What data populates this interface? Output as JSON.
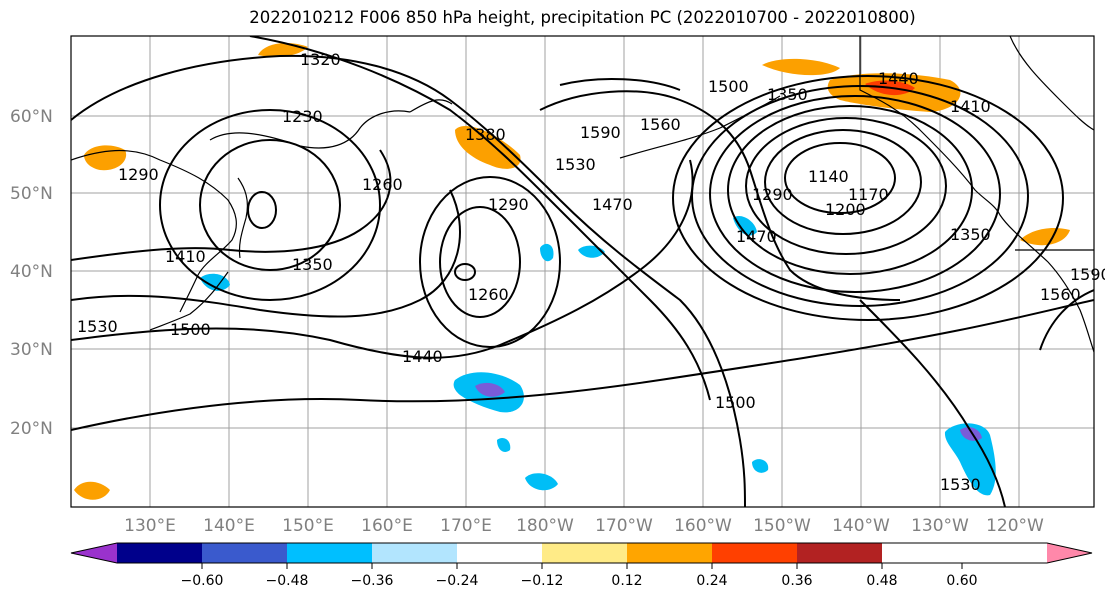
{
  "title": "2022010212 F006 850 hPa height, precipitation PC (2022010700 - 2022010800)",
  "map": {
    "latitude_labels": [
      "60°N",
      "50°N",
      "40°N",
      "30°N",
      "20°N"
    ],
    "longitude_labels": [
      "130°E",
      "140°E",
      "150°E",
      "160°E",
      "170°E",
      "180°W",
      "170°W",
      "160°W",
      "150°W",
      "140°W",
      "130°W",
      "120°W"
    ],
    "contour_labels": [
      "1320",
      "1230",
      "1290",
      "1380",
      "1500",
      "1590",
      "1560",
      "1530",
      "1470",
      "1440",
      "1350",
      "1410",
      "1140",
      "1170",
      "1200",
      "1290",
      "1350",
      "1470",
      "1260",
      "1290",
      "1350",
      "1260",
      "1410",
      "1530",
      "1500",
      "1440",
      "1500",
      "1530",
      "1560",
      "1590"
    ],
    "colors": {
      "contour": "#000000",
      "coast": "#000000",
      "grid": "#a0a0a0",
      "positive_low": "#fbe881",
      "positive_mid": "#fca000",
      "positive_high": "#fc3c00",
      "negative_low": "#00bef6",
      "negative_mid": "#7a5cd8"
    }
  },
  "colorbar": {
    "ticks": [
      "−0.60",
      "−0.48",
      "−0.36",
      "−0.24",
      "−0.12",
      "0.12",
      "0.24",
      "0.36",
      "0.48",
      "0.60"
    ],
    "colors": [
      "#9a32cd",
      "#00008b",
      "#3a5acd",
      "#00bfff",
      "#b2e5fe",
      "#ffffff",
      "#ffeb87",
      "#ffa500",
      "#ff4000",
      "#b22222",
      "#ff88aa"
    ]
  }
}
